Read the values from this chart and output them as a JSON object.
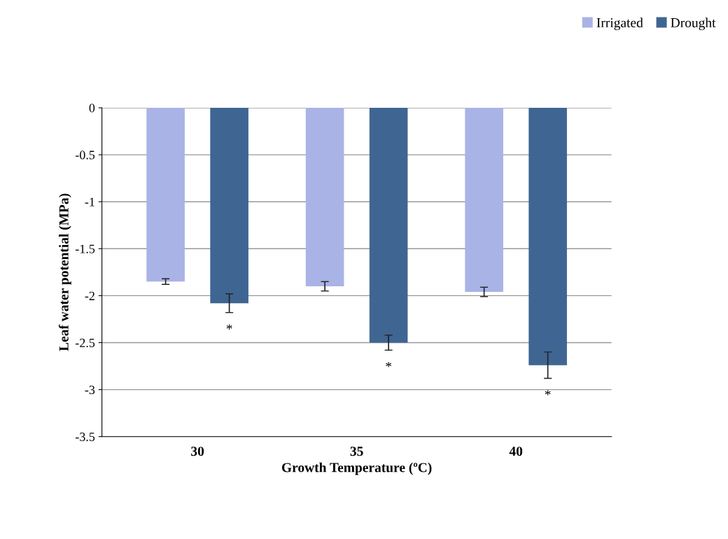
{
  "chart_data": {
    "type": "bar",
    "xlabel": "Growth Temperature (ºC)",
    "ylabel": "Leaf water potential (MPa)",
    "categories": [
      "30",
      "35",
      "40"
    ],
    "series": [
      {
        "name": "Irrigated",
        "color": "#aab3e6",
        "values": [
          -1.85,
          -1.9,
          -1.96
        ],
        "errors": [
          0.03,
          0.05,
          0.05
        ]
      },
      {
        "name": "Drought",
        "color": "#3f6592",
        "values": [
          -2.08,
          -2.5,
          -2.74
        ],
        "errors": [
          0.1,
          0.08,
          0.14
        ]
      }
    ],
    "ylim": [
      -3.5,
      0
    ],
    "yticks": [
      -3.5,
      -3,
      -2.5,
      -2,
      -1.5,
      -1,
      -0.5,
      0
    ],
    "grid": "y",
    "legend": "top right",
    "annotations": [
      "*",
      "*",
      "*"
    ]
  }
}
